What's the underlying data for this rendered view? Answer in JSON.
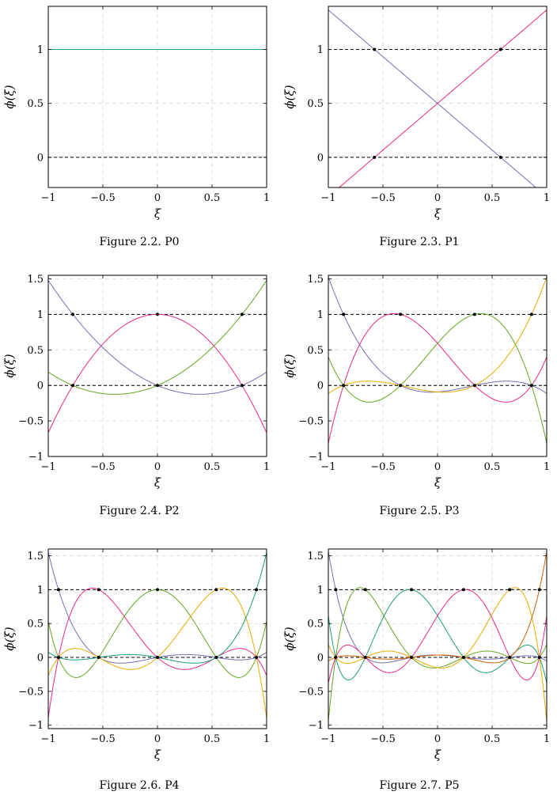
{
  "colors": {
    "purple": "#7570b3",
    "magenta": "#e7298a",
    "green": "#66a61e",
    "orange": "#e6ab02",
    "teal": "#1b9e77",
    "brown": "#d95f02",
    "grid": "#d8d8d8",
    "dashed_ref": "#000000"
  },
  "chart_data": [
    {
      "type": "line",
      "caption": "Figure 2.2. P0",
      "xlabel": "ξ",
      "ylabel": "ϕ(ξ)",
      "xlim": [
        -1,
        1
      ],
      "ylim": [
        -0.28,
        1.4
      ],
      "xticks": [
        -1,
        -0.5,
        0,
        0.5,
        1
      ],
      "xtick_labels": [
        "−1",
        "−0.5",
        "0",
        "0.5",
        "1"
      ],
      "yticks": [
        0,
        0.5,
        1
      ],
      "ytick_labels": [
        "0",
        "0.5",
        "1"
      ],
      "grid": true,
      "reference_lines": [
        0,
        1
      ],
      "nodes": [],
      "series": [
        {
          "color": "teal",
          "coeffs": [
            1
          ]
        }
      ]
    },
    {
      "type": "line",
      "caption": "Figure 2.3. P1",
      "xlabel": "ξ",
      "ylabel": "ϕ(ξ)",
      "xlim": [
        -1,
        1
      ],
      "ylim": [
        -0.28,
        1.4
      ],
      "xticks": [
        -1,
        -0.5,
        0,
        0.5,
        1
      ],
      "xtick_labels": [
        "−1",
        "−0.5",
        "0",
        "0.5",
        "1"
      ],
      "yticks": [
        0,
        0.5,
        1
      ],
      "ytick_labels": [
        "0",
        "0.5",
        "1"
      ],
      "grid": true,
      "reference_lines": [
        0,
        1
      ],
      "nodes": [
        -0.57735,
        0.57735
      ],
      "series": [
        {
          "color": "purple",
          "coeffs": [
            0.5,
            -0.866025
          ]
        },
        {
          "color": "magenta",
          "coeffs": [
            0.5,
            0.866025
          ]
        }
      ]
    },
    {
      "type": "line",
      "caption": "Figure 2.4. P2",
      "xlabel": "ξ",
      "ylabel": "ϕ(ξ)",
      "xlim": [
        -1,
        1
      ],
      "ylim": [
        -1,
        1.55
      ],
      "xticks": [
        -1,
        -0.5,
        0,
        0.5,
        1
      ],
      "xtick_labels": [
        "−1",
        "−0.5",
        "0",
        "0.5",
        "1"
      ],
      "yticks": [
        -1,
        -0.5,
        0,
        0.5,
        1,
        1.5
      ],
      "ytick_labels": [
        "−1",
        "−0.5",
        "0",
        "0.5",
        "1",
        "1.5"
      ],
      "grid": true,
      "reference_lines": [
        0,
        1
      ],
      "nodes": [
        -0.774597,
        0,
        0.774597
      ],
      "series": [
        {
          "color": "purple",
          "coeffs": [
            0,
            -0.645497,
            0.833333
          ]
        },
        {
          "color": "magenta",
          "coeffs": [
            1,
            0,
            -1.666667
          ]
        },
        {
          "color": "green",
          "coeffs": [
            0,
            0.645497,
            0.833333
          ]
        }
      ]
    },
    {
      "type": "line",
      "caption": "Figure 2.5. P3",
      "xlabel": "ξ",
      "ylabel": "ϕ(ξ)",
      "xlim": [
        -1,
        1
      ],
      "ylim": [
        -1,
        1.55
      ],
      "xticks": [
        -1,
        -0.5,
        0,
        0.5,
        1
      ],
      "xtick_labels": [
        "−1",
        "−0.5",
        "0",
        "0.5",
        "1"
      ],
      "yticks": [
        -1,
        -0.5,
        0,
        0.5,
        1,
        1.5
      ],
      "ytick_labels": [
        "−1",
        "−0.5",
        "0",
        "0.5",
        "1",
        "1.5"
      ],
      "grid": true,
      "reference_lines": [
        0,
        1
      ],
      "nodes": [
        -0.861136,
        -0.339981,
        0.339981,
        0.861136
      ],
      "series": [
        {
          "nodes_lagrange": true,
          "index": 0,
          "color": "purple"
        },
        {
          "nodes_lagrange": true,
          "index": 1,
          "color": "magenta"
        },
        {
          "nodes_lagrange": true,
          "index": 2,
          "color": "green"
        },
        {
          "nodes_lagrange": true,
          "index": 3,
          "color": "orange"
        }
      ]
    },
    {
      "type": "line",
      "caption": "Figure 2.6. P4",
      "xlabel": "ξ",
      "ylabel": "ϕ(ξ)",
      "xlim": [
        -1,
        1
      ],
      "ylim": [
        -1.05,
        1.6
      ],
      "xticks": [
        -1,
        -0.5,
        0,
        0.5,
        1
      ],
      "xtick_labels": [
        "−1",
        "−0.5",
        "0",
        "0.5",
        "1"
      ],
      "yticks": [
        -1,
        -0.5,
        0,
        0.5,
        1,
        1.5
      ],
      "ytick_labels": [
        "−1",
        "−0.5",
        "0",
        "0.5",
        "1",
        "1.5"
      ],
      "grid": true,
      "reference_lines": [
        0,
        1
      ],
      "nodes": [
        -0.90618,
        -0.538469,
        0,
        0.538469,
        0.90618
      ],
      "series": [
        {
          "nodes_lagrange": true,
          "index": 0,
          "color": "purple"
        },
        {
          "nodes_lagrange": true,
          "index": 1,
          "color": "magenta"
        },
        {
          "nodes_lagrange": true,
          "index": 2,
          "color": "green"
        },
        {
          "nodes_lagrange": true,
          "index": 3,
          "color": "orange"
        },
        {
          "nodes_lagrange": true,
          "index": 4,
          "color": "teal"
        }
      ]
    },
    {
      "type": "line",
      "caption": "Figure 2.7. P5",
      "xlabel": "ξ",
      "ylabel": "ϕ(ξ)",
      "xlim": [
        -1,
        1
      ],
      "ylim": [
        -1.05,
        1.6
      ],
      "xticks": [
        -1,
        -0.5,
        0,
        0.5,
        1
      ],
      "xtick_labels": [
        "−1",
        "−0.5",
        "0",
        "0.5",
        "1"
      ],
      "yticks": [
        -1,
        -0.5,
        0,
        0.5,
        1,
        1.5
      ],
      "ytick_labels": [
        "−1",
        "−0.5",
        "0",
        "0.5",
        "1",
        "1.5"
      ],
      "grid": true,
      "reference_lines": [
        0,
        1
      ],
      "nodes": [
        -0.93247,
        -0.661209,
        -0.238619,
        0.238619,
        0.661209,
        0.93247
      ],
      "series": [
        {
          "nodes_lagrange": true,
          "index": 0,
          "color": "purple"
        },
        {
          "nodes_lagrange": true,
          "index": 1,
          "color": "green"
        },
        {
          "nodes_lagrange": true,
          "index": 2,
          "color": "teal"
        },
        {
          "nodes_lagrange": true,
          "index": 3,
          "color": "magenta"
        },
        {
          "nodes_lagrange": true,
          "index": 4,
          "color": "orange"
        },
        {
          "nodes_lagrange": true,
          "index": 5,
          "color": "brown"
        }
      ]
    }
  ]
}
